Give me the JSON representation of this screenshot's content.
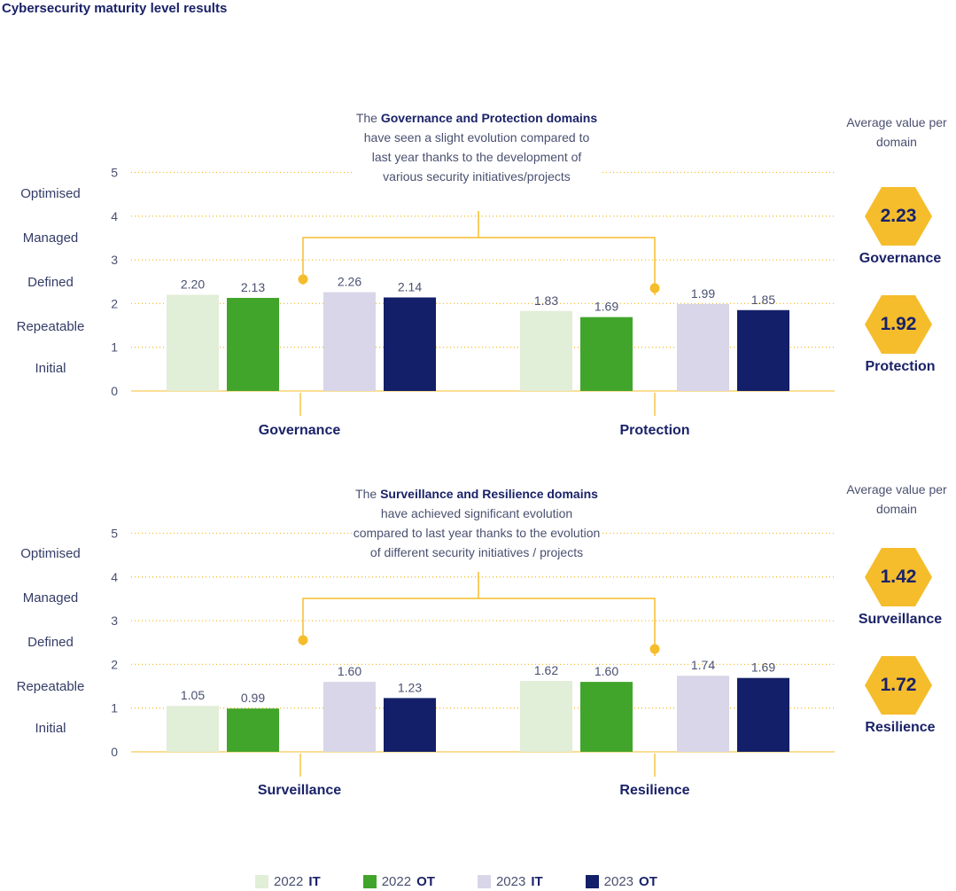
{
  "title": "Cybersecurity maturity level results",
  "levels": [
    "Optimised",
    "Managed",
    "Defined",
    "Repeatable",
    "Initial"
  ],
  "avg_title": "Average value per domain",
  "legend": [
    {
      "year": "2022",
      "type": "IT",
      "color": "#e1eed8"
    },
    {
      "year": "2022",
      "type": "OT",
      "color": "#41a52b"
    },
    {
      "year": "2023",
      "type": "IT",
      "color": "#d8d6e8"
    },
    {
      "year": "2023",
      "type": "OT",
      "color": "#131f68"
    }
  ],
  "callouts": [
    {
      "pre": "The ",
      "bold": "Governance and Protection domains",
      "post": " have seen a slight evolution compared to last year thanks to the development of various security initiatives/projects"
    },
    {
      "pre": "The ",
      "bold": "Surveillance and Resilience domains",
      "post": " have achieved significant evolution compared to last year thanks to the evolution of different security initiatives / projects"
    }
  ],
  "averages": [
    {
      "domain": "Governance",
      "value": "2.23"
    },
    {
      "domain": "Protection",
      "value": "1.92"
    },
    {
      "domain": "Surveillance",
      "value": "1.42"
    },
    {
      "domain": "Resilience",
      "value": "1.72"
    }
  ],
  "chart_data": [
    {
      "type": "bar",
      "categories": [
        "Governance",
        "Protection"
      ],
      "series": [
        {
          "name": "2022 IT",
          "values": [
            2.2,
            1.83
          ],
          "labels": [
            "2.20",
            "1.83"
          ]
        },
        {
          "name": "2022 OT",
          "values": [
            2.13,
            1.69
          ],
          "labels": [
            "2.13",
            "1.69"
          ]
        },
        {
          "name": "2023 IT",
          "values": [
            2.26,
            1.99
          ],
          "labels": [
            "2.26",
            "1.99"
          ]
        },
        {
          "name": "2023 OT",
          "values": [
            2.14,
            1.85
          ],
          "labels": [
            "2.14",
            "1.85"
          ]
        }
      ],
      "yticks": [
        "0",
        "1",
        "2",
        "3",
        "4",
        "5"
      ],
      "ylim": [
        0,
        5
      ],
      "grid": "dotted"
    },
    {
      "type": "bar",
      "categories": [
        "Surveillance",
        "Resilience"
      ],
      "series": [
        {
          "name": "2022 IT",
          "values": [
            1.05,
            1.62
          ],
          "labels": [
            "1.05",
            "1.62"
          ]
        },
        {
          "name": "2022 OT",
          "values": [
            0.99,
            1.6
          ],
          "labels": [
            "0.99",
            "1.60"
          ]
        },
        {
          "name": "2023 IT",
          "values": [
            1.6,
            1.74
          ],
          "labels": [
            "1.60",
            "1.74"
          ]
        },
        {
          "name": "2023 OT",
          "values": [
            1.23,
            1.69
          ],
          "labels": [
            "1.23",
            "1.69"
          ]
        }
      ],
      "yticks": [
        "0",
        "1",
        "2",
        "3",
        "4",
        "5"
      ],
      "ylim": [
        0,
        5
      ],
      "grid": "dotted"
    }
  ]
}
